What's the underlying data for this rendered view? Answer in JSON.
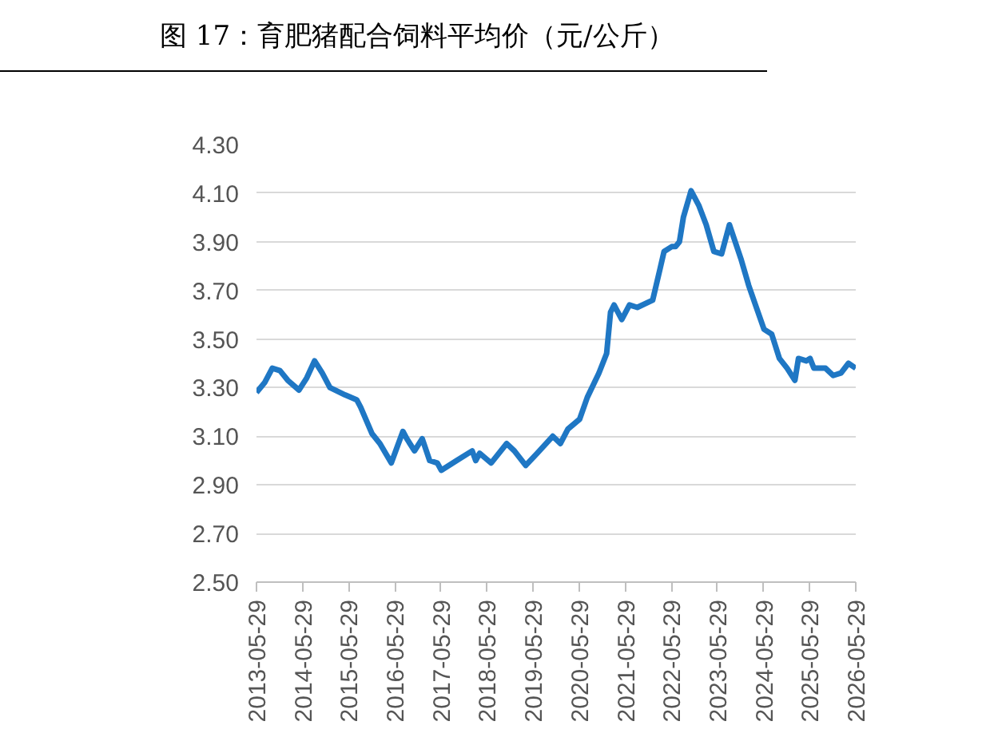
{
  "chart_data": {
    "type": "line",
    "title": "图 17：育肥猪配合饲料平均价（元/公斤）",
    "x": [
      "2013-05-29",
      "2013-08",
      "2013-10",
      "2013-12",
      "2014-02",
      "2014-05",
      "2014-07",
      "2014-09",
      "2014-11",
      "2015-01",
      "2015-05",
      "2015-08",
      "2015-09",
      "2015-12",
      "2016-02",
      "2016-05",
      "2016-08",
      "2016-09",
      "2016-11",
      "2017-01",
      "2017-03",
      "2017-05",
      "2017-06",
      "2017-10",
      "2018-02",
      "2018-03",
      "2018-04",
      "2018-07",
      "2018-11",
      "2019-01",
      "2019-04",
      "2019-07",
      "2019-11",
      "2020-01",
      "2020-03",
      "2020-06",
      "2020-08",
      "2020-11",
      "2021-01",
      "2021-02",
      "2021-03",
      "2021-05",
      "2021-07",
      "2021-09",
      "2022-01",
      "2022-03",
      "2022-04",
      "2022-06",
      "2022-07",
      "2022-08",
      "2022-09",
      "2022-11",
      "2023-01",
      "2023-03",
      "2023-05",
      "2023-07",
      "2023-09",
      "2023-12",
      "2024-02",
      "2024-04",
      "2024-06",
      "2024-08",
      "2024-10",
      "2024-12",
      "2025-02",
      "2025-03",
      "2025-05",
      "2025-06",
      "2025-07",
      "2025-10",
      "2025-12",
      "2026-02",
      "2026-04",
      "2026-05-29"
    ],
    "series": [
      {
        "color": "#1f77c4",
        "values": [
          3.28,
          3.32,
          3.38,
          3.37,
          3.33,
          3.29,
          3.34,
          3.41,
          3.36,
          3.3,
          3.27,
          3.25,
          3.22,
          3.11,
          3.07,
          2.99,
          3.12,
          3.09,
          3.04,
          3.09,
          3.0,
          2.99,
          2.96,
          3.0,
          3.04,
          3.0,
          3.03,
          2.99,
          3.07,
          3.04,
          2.98,
          3.03,
          3.1,
          3.07,
          3.13,
          3.17,
          3.26,
          3.36,
          3.44,
          3.61,
          3.64,
          3.58,
          3.64,
          3.63,
          3.66,
          3.79,
          3.86,
          3.88,
          3.88,
          3.9,
          4.0,
          4.11,
          4.05,
          3.97,
          3.86,
          3.85,
          3.97,
          3.83,
          3.72,
          3.63,
          3.54,
          3.52,
          3.42,
          3.38,
          3.33,
          3.42,
          3.41,
          3.42,
          3.38,
          3.38,
          3.35,
          3.36,
          3.4,
          3.38
        ]
      }
    ],
    "xlim": [
      "2013-05-29",
      "2026-05-29"
    ],
    "xticks": [
      "2013-05-29",
      "2014-05-29",
      "2015-05-29",
      "2016-05-29",
      "2017-05-29",
      "2018-05-29",
      "2019-05-29",
      "2020-05-29",
      "2021-05-29",
      "2022-05-29",
      "2023-05-29",
      "2024-05-29",
      "2025-05-29",
      "2026-05-29"
    ],
    "ylim": [
      2.5,
      4.3
    ],
    "yticks": [
      {
        "value": 2.5,
        "label": "2.50"
      },
      {
        "value": 2.7,
        "label": "2.70"
      },
      {
        "value": 2.9,
        "label": "2.90"
      },
      {
        "value": 3.1,
        "label": "3.10"
      },
      {
        "value": 3.3,
        "label": "3.30"
      },
      {
        "value": 3.5,
        "label": "3.50"
      },
      {
        "value": 3.7,
        "label": "3.70"
      },
      {
        "value": 3.9,
        "label": "3.90"
      },
      {
        "value": 4.1,
        "label": "4.10"
      },
      {
        "value": 4.3,
        "label": "4.30"
      }
    ],
    "grid": "y"
  }
}
